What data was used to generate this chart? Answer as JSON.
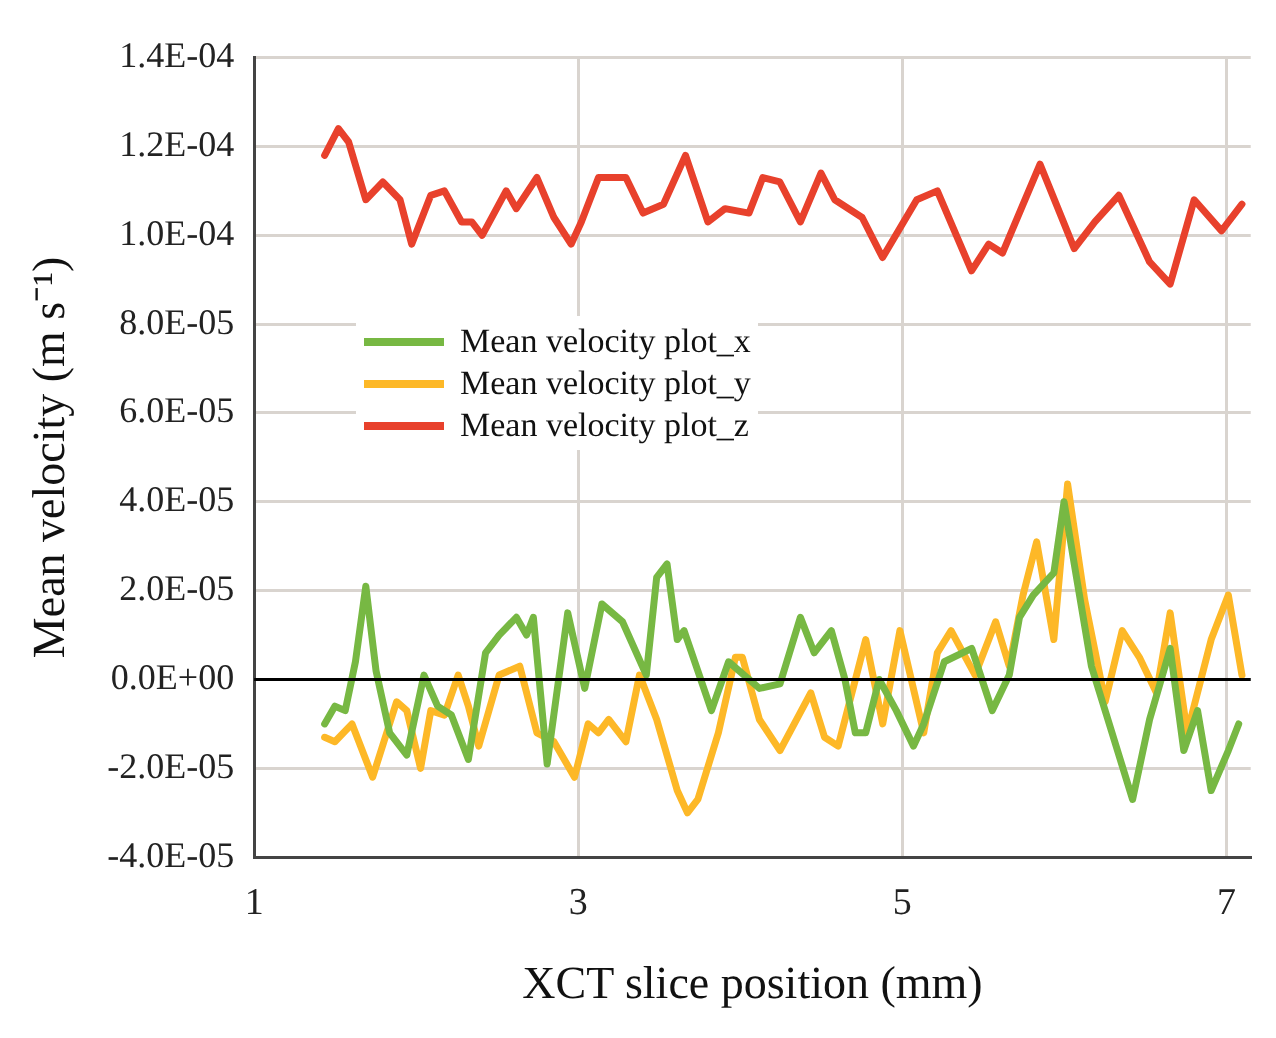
{
  "chart_data": {
    "type": "line",
    "xlabel": "XCT slice position (mm)",
    "ylabel": "Mean velocity (m s⁻¹)",
    "xlim": [
      1,
      7.15
    ],
    "xticks": [
      1,
      3,
      5,
      7
    ],
    "ylim": [
      -4e-05,
      0.00014
    ],
    "yticks": [
      {
        "value": -4e-05,
        "label": "-4.0E-05"
      },
      {
        "value": -2e-05,
        "label": "-2.0E-05"
      },
      {
        "value": 0,
        "label": "0.0E+00"
      },
      {
        "value": 2e-05,
        "label": "2.0E-05"
      },
      {
        "value": 4e-05,
        "label": "4.0E-05"
      },
      {
        "value": 6e-05,
        "label": "6.0E-05"
      },
      {
        "value": 8e-05,
        "label": "8.0E-05"
      },
      {
        "value": 0.0001,
        "label": "1.0E-04"
      },
      {
        "value": 0.00012,
        "label": "1.2E-04"
      },
      {
        "value": 0.00014,
        "label": "1.4E-04"
      }
    ],
    "grid": true,
    "legend": "center left",
    "marker": "none",
    "line_style": "solid",
    "ref_lines": [
      {
        "axis": "y",
        "value": 0,
        "color": "#000000"
      }
    ],
    "series": [
      {
        "name": "Mean velocity plot_x",
        "color": "#77b843",
        "x": [
          1.435,
          1.498,
          1.562,
          1.625,
          1.689,
          1.752,
          1.836,
          1.942,
          2.048,
          2.132,
          2.217,
          2.322,
          2.428,
          2.512,
          2.618,
          2.681,
          2.723,
          2.808,
          2.935,
          3.04,
          3.146,
          3.273,
          3.42,
          3.484,
          3.548,
          3.611,
          3.653,
          3.822,
          3.928,
          4.118,
          4.245,
          4.371,
          4.456,
          4.562,
          4.646,
          4.71,
          4.774,
          4.857,
          4.963,
          5.069,
          5.132,
          5.259,
          5.428,
          5.555,
          5.66,
          5.723,
          5.808,
          5.935,
          5.998,
          6.061,
          6.167,
          6.294,
          6.421,
          6.526,
          6.653,
          6.737,
          6.822,
          6.906,
          7.012,
          7.076
        ],
        "values": [
          -1e-05,
          -6e-06,
          -7e-06,
          4e-06,
          2.1e-05,
          2e-06,
          -1.2e-05,
          -1.7e-05,
          1e-06,
          -6e-06,
          -8e-06,
          -1.8e-05,
          6e-06,
          1e-05,
          1.4e-05,
          1e-05,
          1.4e-05,
          -1.9e-05,
          1.5e-05,
          -2e-06,
          1.7e-05,
          1.3e-05,
          1e-06,
          2.3e-05,
          2.6e-05,
          9e-06,
          1.1e-05,
          -7e-06,
          4e-06,
          -2e-06,
          -1e-06,
          1.4e-05,
          6e-06,
          1.1e-05,
          0,
          -1.2e-05,
          -1.2e-05,
          0,
          -7e-06,
          -1.5e-05,
          -1e-05,
          4e-06,
          7e-06,
          -7e-06,
          1e-06,
          1.4e-05,
          1.9e-05,
          2.4e-05,
          4e-05,
          2.6e-05,
          3e-06,
          -1.2e-05,
          -2.7e-05,
          -9e-06,
          7e-06,
          -1.6e-05,
          -7e-06,
          -2.5e-05,
          -1.6e-05,
          -1e-05
        ]
      },
      {
        "name": "Mean velocity plot_y",
        "color": "#fdb827",
        "x": [
          1.435,
          1.498,
          1.604,
          1.731,
          1.879,
          1.942,
          2.027,
          2.09,
          2.174,
          2.259,
          2.322,
          2.386,
          2.512,
          2.639,
          2.745,
          2.85,
          2.977,
          3.061,
          3.125,
          3.188,
          3.294,
          3.378,
          3.484,
          3.611,
          3.674,
          3.738,
          3.865,
          3.97,
          4.013,
          4.118,
          4.245,
          4.435,
          4.52,
          4.604,
          4.774,
          4.879,
          4.985,
          5.132,
          5.216,
          5.301,
          5.449,
          5.576,
          5.66,
          5.745,
          5.829,
          5.935,
          6.02,
          6.125,
          6.252,
          6.357,
          6.463,
          6.568,
          6.653,
          6.758,
          6.906,
          7.012,
          7.096
        ],
        "values": [
          -1.3e-05,
          -1.4e-05,
          -1e-05,
          -2.2e-05,
          -5e-06,
          -7e-06,
          -2e-05,
          -7e-06,
          -8e-06,
          1e-06,
          -6e-06,
          -1.5e-05,
          1e-06,
          3e-06,
          -1.2e-05,
          -1.4e-05,
          -2.2e-05,
          -1e-05,
          -1.2e-05,
          -9e-06,
          -1.4e-05,
          1e-06,
          -9e-06,
          -2.5e-05,
          -3e-05,
          -2.7e-05,
          -1.2e-05,
          5e-06,
          5e-06,
          -9e-06,
          -1.6e-05,
          -3e-06,
          -1.3e-05,
          -1.5e-05,
          9e-06,
          -1e-05,
          1.1e-05,
          -1.2e-05,
          6e-06,
          1.1e-05,
          1e-06,
          1.3e-05,
          3e-06,
          1.9e-05,
          3.1e-05,
          9e-06,
          4.4e-05,
          1.8e-05,
          -5e-06,
          1.1e-05,
          5e-06,
          -3e-06,
          1.5e-05,
          -1.2e-05,
          9e-06,
          1.9e-05,
          1e-06
        ]
      },
      {
        "name": "Mean velocity plot_z",
        "color": "#e8412c",
        "x": [
          1.435,
          1.52,
          1.583,
          1.689,
          1.794,
          1.9,
          1.972,
          2.09,
          2.174,
          2.28,
          2.343,
          2.407,
          2.555,
          2.618,
          2.745,
          2.85,
          2.956,
          3.019,
          3.125,
          3.294,
          3.4,
          3.526,
          3.662,
          3.8,
          3.906,
          4.054,
          4.139,
          4.244,
          4.371,
          4.498,
          4.583,
          4.752,
          4.878,
          5.089,
          5.216,
          5.427,
          5.533,
          5.618,
          5.85,
          6.061,
          6.188,
          6.336,
          6.526,
          6.653,
          6.801,
          6.97,
          7.096
        ],
        "values": [
          0.000118,
          0.000124,
          0.000121,
          0.000108,
          0.000112,
          0.000108,
          9.8e-05,
          0.000109,
          0.00011,
          0.000103,
          0.000103,
          0.0001,
          0.00011,
          0.000106,
          0.000113,
          0.000104,
          9.8e-05,
          0.000103,
          0.000113,
          0.000113,
          0.000105,
          0.000107,
          0.000118,
          0.000103,
          0.000106,
          0.000105,
          0.000113,
          0.000112,
          0.000103,
          0.000114,
          0.000108,
          0.000104,
          9.5e-05,
          0.000108,
          0.00011,
          9.2e-05,
          9.8e-05,
          9.6e-05,
          0.000116,
          9.7e-05,
          0.000103,
          0.000109,
          9.4e-05,
          8.9e-05,
          0.000108,
          0.000101,
          0.000107
        ]
      }
    ]
  }
}
